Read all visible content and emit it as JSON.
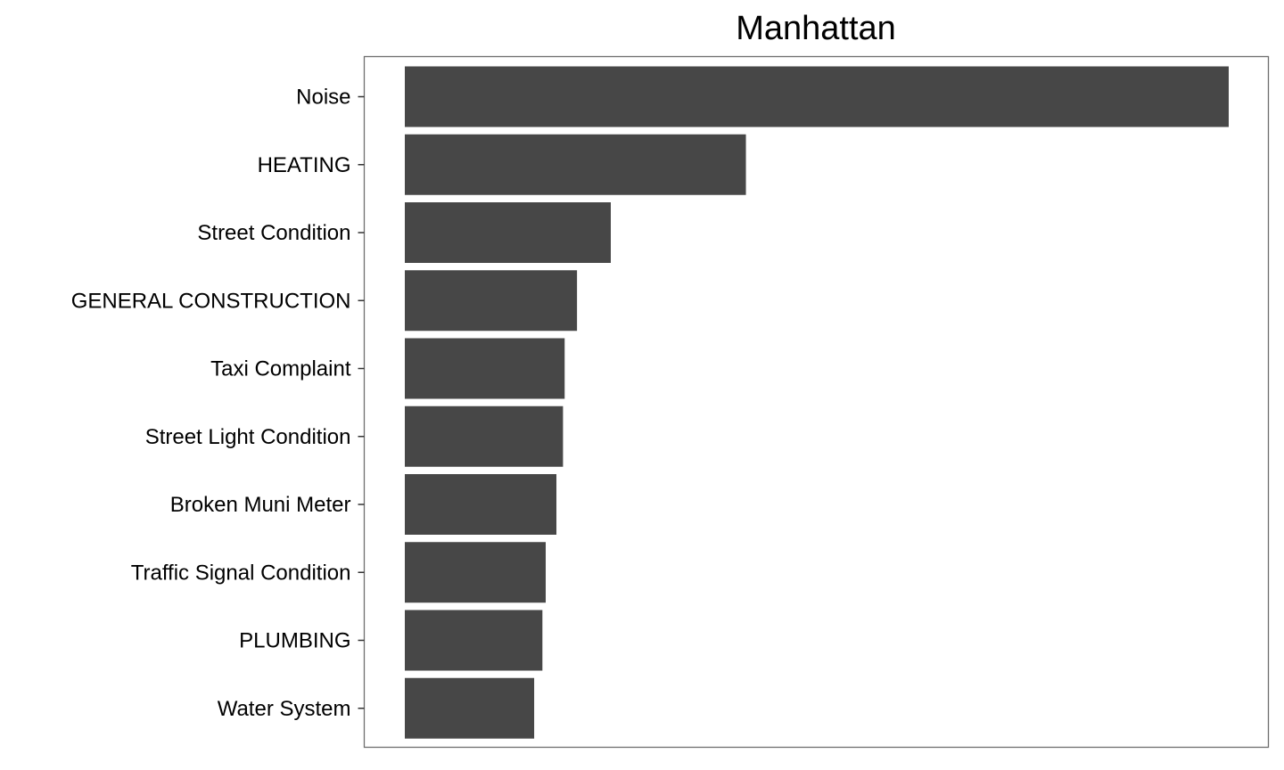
{
  "chart_data": {
    "type": "bar",
    "orientation": "horizontal",
    "title": "Manhattan",
    "xlabel": "",
    "ylabel": "",
    "categories": [
      "Noise",
      "HEATING",
      "Street Condition",
      "GENERAL CONSTRUCTION",
      "Taxi Complaint",
      "Street Light Condition",
      "Broken Muni Meter",
      "Traffic Signal Condition",
      "PLUMBING",
      "Water System"
    ],
    "values": [
      100,
      41.4,
      25.0,
      20.9,
      19.4,
      19.2,
      18.4,
      17.1,
      16.7,
      15.7
    ],
    "xlim": [
      0,
      100
    ],
    "x_axis_visible": false,
    "grid": false,
    "legend": "none",
    "bar_color": "#474747",
    "panel_border_color": "#6e6e6e"
  }
}
